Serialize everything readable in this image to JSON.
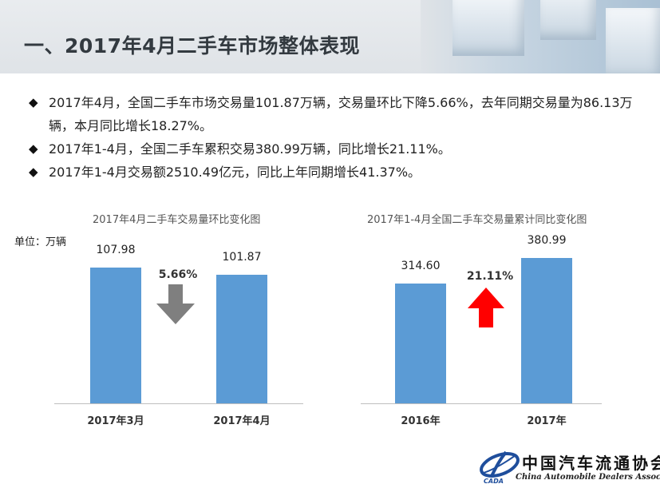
{
  "header": {
    "title": "一、2017年4月二手车市场整体表现"
  },
  "bullets": [
    "2017年4月，全国二手车市场交易量101.87万辆，交易量环比下降5.66%，去年同期交易量为86.13万辆，本月同比增长18.27%。",
    "2017年1-4月，全国二手车累积交易380.99万辆，同比增长21.11%。",
    "2017年1-4月交易额2510.49亿元，同比上年同期增长41.37%。"
  ],
  "bullet_symbol": "◆",
  "unit_label": "单位：万辆",
  "chart_data": [
    {
      "type": "bar",
      "title": "2017年4月二手车交易量环比变化图",
      "categories": [
        "2017年3月",
        "2017年4月"
      ],
      "values": [
        107.98,
        101.87
      ],
      "value_labels": [
        "107.98",
        "101.87"
      ],
      "change_label": "5.66%",
      "change_direction": "down",
      "arrow_color": "#7f7f7f",
      "bar_color": "#5b9bd5",
      "ylim": [
        0,
        130
      ]
    },
    {
      "type": "bar",
      "title": "2017年1-4月全国二手车交易量累计同比变化图",
      "categories": [
        "2016年",
        "2017年"
      ],
      "values": [
        314.6,
        380.99
      ],
      "value_labels": [
        "314.60",
        "380.99"
      ],
      "change_label": "21.11%",
      "change_direction": "up",
      "arrow_color": "#ff0000",
      "bar_color": "#5b9bd5",
      "ylim": [
        0,
        430
      ]
    }
  ],
  "logo": {
    "name_cn": "中国汽车流通协会",
    "name_en": "China Automobile Dealers Association",
    "abbr": "CADA",
    "color": "#1f4e9c"
  }
}
